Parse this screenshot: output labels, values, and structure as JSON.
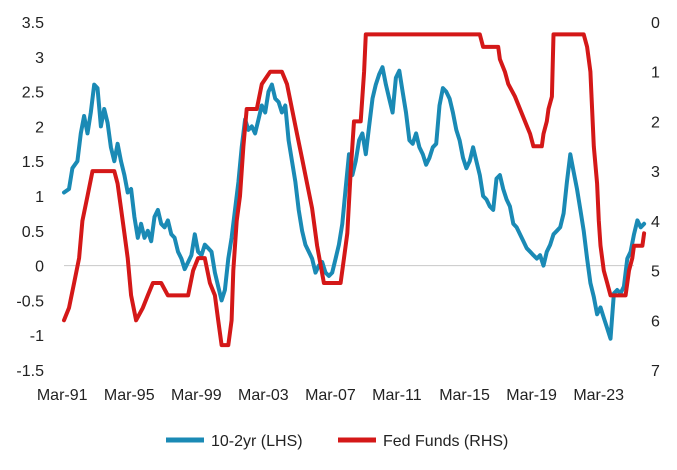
{
  "chart_data": {
    "type": "line",
    "title": "",
    "xlabel": "",
    "ylabel_left": "",
    "ylabel_right": "",
    "x_range": [
      1991.0,
      2025.0
    ],
    "left_axis": {
      "ylim": [
        -1.5,
        3.5
      ],
      "ticks": [
        "-1.5",
        "-1",
        "-0.5",
        "0",
        "0.5",
        "1",
        "1.5",
        "2",
        "2.5",
        "3",
        "3.5"
      ]
    },
    "right_axis": {
      "ylim": [
        7,
        0
      ],
      "reversed": true,
      "ticks": [
        "0",
        "1",
        "2",
        "3",
        "4",
        "5",
        "6",
        "7"
      ]
    },
    "x_ticks": [
      {
        "label": "Mar-91",
        "x": 1991.17
      },
      {
        "label": "Mar-95",
        "x": 1995.17
      },
      {
        "label": "Mar-99",
        "x": 1999.17
      },
      {
        "label": "Mar-03",
        "x": 2003.17
      },
      {
        "label": "Mar-07",
        "x": 2007.17
      },
      {
        "label": "Mar-11",
        "x": 2011.17
      },
      {
        "label": "Mar-15",
        "x": 2015.17
      },
      {
        "label": "Mar-19",
        "x": 2019.17
      },
      {
        "label": "Mar-23",
        "x": 2023.17
      }
    ],
    "legend_position": "bottom",
    "grid": false,
    "series": [
      {
        "name": "10-2yr (LHS)",
        "axis": "left",
        "color": "#1a8ab5",
        "points": [
          [
            1991.0,
            1.05
          ],
          [
            1991.3,
            1.1
          ],
          [
            1991.5,
            1.4
          ],
          [
            1991.8,
            1.5
          ],
          [
            1992.0,
            1.9
          ],
          [
            1992.2,
            2.15
          ],
          [
            1992.4,
            1.9
          ],
          [
            1992.6,
            2.2
          ],
          [
            1992.8,
            2.6
          ],
          [
            1993.0,
            2.55
          ],
          [
            1993.2,
            2.0
          ],
          [
            1993.4,
            2.25
          ],
          [
            1993.6,
            2.05
          ],
          [
            1993.8,
            1.7
          ],
          [
            1994.0,
            1.5
          ],
          [
            1994.2,
            1.75
          ],
          [
            1994.4,
            1.5
          ],
          [
            1994.6,
            1.3
          ],
          [
            1994.8,
            1.05
          ],
          [
            1995.0,
            1.1
          ],
          [
            1995.2,
            0.7
          ],
          [
            1995.4,
            0.4
          ],
          [
            1995.6,
            0.6
          ],
          [
            1995.8,
            0.4
          ],
          [
            1996.0,
            0.5
          ],
          [
            1996.2,
            0.35
          ],
          [
            1996.4,
            0.7
          ],
          [
            1996.6,
            0.8
          ],
          [
            1996.8,
            0.6
          ],
          [
            1997.0,
            0.55
          ],
          [
            1997.2,
            0.65
          ],
          [
            1997.4,
            0.45
          ],
          [
            1997.6,
            0.4
          ],
          [
            1997.8,
            0.2
          ],
          [
            1998.0,
            0.1
          ],
          [
            1998.2,
            -0.05
          ],
          [
            1998.4,
            0.05
          ],
          [
            1998.6,
            0.15
          ],
          [
            1998.8,
            0.45
          ],
          [
            1999.0,
            0.2
          ],
          [
            1999.2,
            0.15
          ],
          [
            1999.4,
            0.3
          ],
          [
            1999.6,
            0.25
          ],
          [
            1999.8,
            0.2
          ],
          [
            2000.0,
            -0.1
          ],
          [
            2000.2,
            -0.3
          ],
          [
            2000.4,
            -0.5
          ],
          [
            2000.6,
            -0.35
          ],
          [
            2000.8,
            0.1
          ],
          [
            2001.0,
            0.4
          ],
          [
            2001.2,
            0.8
          ],
          [
            2001.4,
            1.2
          ],
          [
            2001.6,
            1.7
          ],
          [
            2001.8,
            2.1
          ],
          [
            2002.0,
            1.95
          ],
          [
            2002.2,
            2.0
          ],
          [
            2002.4,
            1.9
          ],
          [
            2002.6,
            2.1
          ],
          [
            2002.8,
            2.3
          ],
          [
            2003.0,
            2.2
          ],
          [
            2003.2,
            2.5
          ],
          [
            2003.4,
            2.6
          ],
          [
            2003.6,
            2.4
          ],
          [
            2003.8,
            2.35
          ],
          [
            2004.0,
            2.2
          ],
          [
            2004.2,
            2.3
          ],
          [
            2004.4,
            1.8
          ],
          [
            2004.6,
            1.5
          ],
          [
            2004.8,
            1.2
          ],
          [
            2005.0,
            0.8
          ],
          [
            2005.2,
            0.5
          ],
          [
            2005.4,
            0.3
          ],
          [
            2005.6,
            0.2
          ],
          [
            2005.8,
            0.1
          ],
          [
            2006.0,
            -0.1
          ],
          [
            2006.2,
            0.0
          ],
          [
            2006.4,
            0.05
          ],
          [
            2006.6,
            -0.1
          ],
          [
            2006.8,
            -0.15
          ],
          [
            2007.0,
            -0.1
          ],
          [
            2007.2,
            0.1
          ],
          [
            2007.4,
            0.3
          ],
          [
            2007.6,
            0.6
          ],
          [
            2007.8,
            1.1
          ],
          [
            2008.0,
            1.6
          ],
          [
            2008.2,
            1.3
          ],
          [
            2008.4,
            1.5
          ],
          [
            2008.6,
            1.8
          ],
          [
            2008.8,
            1.9
          ],
          [
            2009.0,
            1.6
          ],
          [
            2009.2,
            2.0
          ],
          [
            2009.4,
            2.4
          ],
          [
            2009.6,
            2.6
          ],
          [
            2009.8,
            2.75
          ],
          [
            2010.0,
            2.85
          ],
          [
            2010.2,
            2.6
          ],
          [
            2010.4,
            2.4
          ],
          [
            2010.6,
            2.2
          ],
          [
            2010.8,
            2.7
          ],
          [
            2011.0,
            2.8
          ],
          [
            2011.2,
            2.5
          ],
          [
            2011.4,
            2.2
          ],
          [
            2011.6,
            1.8
          ],
          [
            2011.8,
            1.75
          ],
          [
            2012.0,
            1.9
          ],
          [
            2012.2,
            1.7
          ],
          [
            2012.4,
            1.6
          ],
          [
            2012.6,
            1.45
          ],
          [
            2012.8,
            1.55
          ],
          [
            2013.0,
            1.7
          ],
          [
            2013.2,
            1.75
          ],
          [
            2013.4,
            2.3
          ],
          [
            2013.6,
            2.55
          ],
          [
            2013.8,
            2.5
          ],
          [
            2014.0,
            2.4
          ],
          [
            2014.2,
            2.2
          ],
          [
            2014.4,
            1.95
          ],
          [
            2014.6,
            1.8
          ],
          [
            2014.8,
            1.55
          ],
          [
            2015.0,
            1.4
          ],
          [
            2015.2,
            1.5
          ],
          [
            2015.4,
            1.7
          ],
          [
            2015.6,
            1.5
          ],
          [
            2015.8,
            1.3
          ],
          [
            2016.0,
            1.0
          ],
          [
            2016.2,
            0.95
          ],
          [
            2016.4,
            0.85
          ],
          [
            2016.6,
            0.8
          ],
          [
            2016.8,
            1.25
          ],
          [
            2017.0,
            1.3
          ],
          [
            2017.2,
            1.1
          ],
          [
            2017.4,
            0.95
          ],
          [
            2017.6,
            0.85
          ],
          [
            2017.8,
            0.6
          ],
          [
            2018.0,
            0.55
          ],
          [
            2018.2,
            0.45
          ],
          [
            2018.4,
            0.35
          ],
          [
            2018.6,
            0.25
          ],
          [
            2018.8,
            0.2
          ],
          [
            2019.0,
            0.15
          ],
          [
            2019.2,
            0.1
          ],
          [
            2019.4,
            0.15
          ],
          [
            2019.6,
            0.0
          ],
          [
            2019.8,
            0.2
          ],
          [
            2020.0,
            0.3
          ],
          [
            2020.2,
            0.45
          ],
          [
            2020.4,
            0.5
          ],
          [
            2020.6,
            0.55
          ],
          [
            2020.8,
            0.75
          ],
          [
            2021.0,
            1.2
          ],
          [
            2021.2,
            1.6
          ],
          [
            2021.4,
            1.35
          ],
          [
            2021.6,
            1.1
          ],
          [
            2021.8,
            0.8
          ],
          [
            2022.0,
            0.5
          ],
          [
            2022.2,
            0.1
          ],
          [
            2022.4,
            -0.25
          ],
          [
            2022.6,
            -0.45
          ],
          [
            2022.8,
            -0.7
          ],
          [
            2023.0,
            -0.6
          ],
          [
            2023.2,
            -0.75
          ],
          [
            2023.4,
            -0.9
          ],
          [
            2023.6,
            -1.05
          ],
          [
            2023.8,
            -0.4
          ],
          [
            2024.0,
            -0.35
          ],
          [
            2024.2,
            -0.4
          ],
          [
            2024.4,
            -0.3
          ],
          [
            2024.6,
            0.1
          ],
          [
            2024.8,
            0.2
          ],
          [
            2025.0,
            0.45
          ],
          [
            2025.2,
            0.65
          ],
          [
            2025.4,
            0.55
          ],
          [
            2025.6,
            0.6
          ]
        ]
      },
      {
        "name": "Fed Funds (RHS)",
        "axis": "right",
        "color": "#d41818",
        "points": [
          [
            1991.0,
            6.0
          ],
          [
            1991.3,
            5.75
          ],
          [
            1991.6,
            5.25
          ],
          [
            1991.9,
            4.75
          ],
          [
            1992.1,
            4.0
          ],
          [
            1992.4,
            3.5
          ],
          [
            1992.7,
            3.0
          ],
          [
            1993.0,
            3.0
          ],
          [
            1993.5,
            3.0
          ],
          [
            1994.0,
            3.0
          ],
          [
            1994.2,
            3.25
          ],
          [
            1994.4,
            3.75
          ],
          [
            1994.6,
            4.25
          ],
          [
            1994.8,
            4.75
          ],
          [
            1995.0,
            5.5
          ],
          [
            1995.3,
            6.0
          ],
          [
            1995.7,
            5.75
          ],
          [
            1996.0,
            5.5
          ],
          [
            1996.3,
            5.25
          ],
          [
            1996.8,
            5.25
          ],
          [
            1997.2,
            5.5
          ],
          [
            1997.8,
            5.5
          ],
          [
            1998.4,
            5.5
          ],
          [
            1998.7,
            5.0
          ],
          [
            1999.0,
            4.75
          ],
          [
            1999.4,
            4.75
          ],
          [
            1999.7,
            5.25
          ],
          [
            2000.0,
            5.5
          ],
          [
            2000.2,
            6.0
          ],
          [
            2000.4,
            6.5
          ],
          [
            2000.8,
            6.5
          ],
          [
            2001.0,
            6.0
          ],
          [
            2001.1,
            5.0
          ],
          [
            2001.3,
            4.0
          ],
          [
            2001.5,
            3.5
          ],
          [
            2001.7,
            2.5
          ],
          [
            2001.9,
            1.75
          ],
          [
            2002.5,
            1.75
          ],
          [
            2002.8,
            1.25
          ],
          [
            2003.3,
            1.0
          ],
          [
            2004.0,
            1.0
          ],
          [
            2004.3,
            1.25
          ],
          [
            2004.6,
            1.75
          ],
          [
            2004.9,
            2.25
          ],
          [
            2005.2,
            2.75
          ],
          [
            2005.5,
            3.25
          ],
          [
            2005.8,
            3.75
          ],
          [
            2006.1,
            4.5
          ],
          [
            2006.5,
            5.25
          ],
          [
            2007.0,
            5.25
          ],
          [
            2007.5,
            5.25
          ],
          [
            2007.7,
            4.75
          ],
          [
            2007.9,
            4.25
          ],
          [
            2008.1,
            3.0
          ],
          [
            2008.3,
            2.0
          ],
          [
            2008.7,
            2.0
          ],
          [
            2008.9,
            1.0
          ],
          [
            2009.0,
            0.25
          ],
          [
            2010.0,
            0.25
          ],
          [
            2012.0,
            0.25
          ],
          [
            2014.0,
            0.25
          ],
          [
            2015.8,
            0.25
          ],
          [
            2016.0,
            0.5
          ],
          [
            2016.9,
            0.5
          ],
          [
            2017.0,
            0.75
          ],
          [
            2017.3,
            1.0
          ],
          [
            2017.5,
            1.25
          ],
          [
            2017.9,
            1.5
          ],
          [
            2018.2,
            1.75
          ],
          [
            2018.5,
            2.0
          ],
          [
            2018.8,
            2.25
          ],
          [
            2019.0,
            2.5
          ],
          [
            2019.5,
            2.5
          ],
          [
            2019.6,
            2.25
          ],
          [
            2019.8,
            2.0
          ],
          [
            2019.9,
            1.75
          ],
          [
            2020.1,
            1.5
          ],
          [
            2020.2,
            0.25
          ],
          [
            2021.0,
            0.25
          ],
          [
            2022.0,
            0.25
          ],
          [
            2022.2,
            0.5
          ],
          [
            2022.4,
            1.0
          ],
          [
            2022.5,
            1.75
          ],
          [
            2022.6,
            2.5
          ],
          [
            2022.8,
            3.25
          ],
          [
            2022.9,
            4.0
          ],
          [
            2023.0,
            4.5
          ],
          [
            2023.2,
            5.0
          ],
          [
            2023.4,
            5.25
          ],
          [
            2023.6,
            5.5
          ],
          [
            2024.0,
            5.5
          ],
          [
            2024.5,
            5.5
          ],
          [
            2024.7,
            5.0
          ],
          [
            2024.9,
            4.75
          ],
          [
            2025.0,
            4.5
          ],
          [
            2025.5,
            4.5
          ],
          [
            2025.6,
            4.25
          ]
        ]
      }
    ]
  }
}
